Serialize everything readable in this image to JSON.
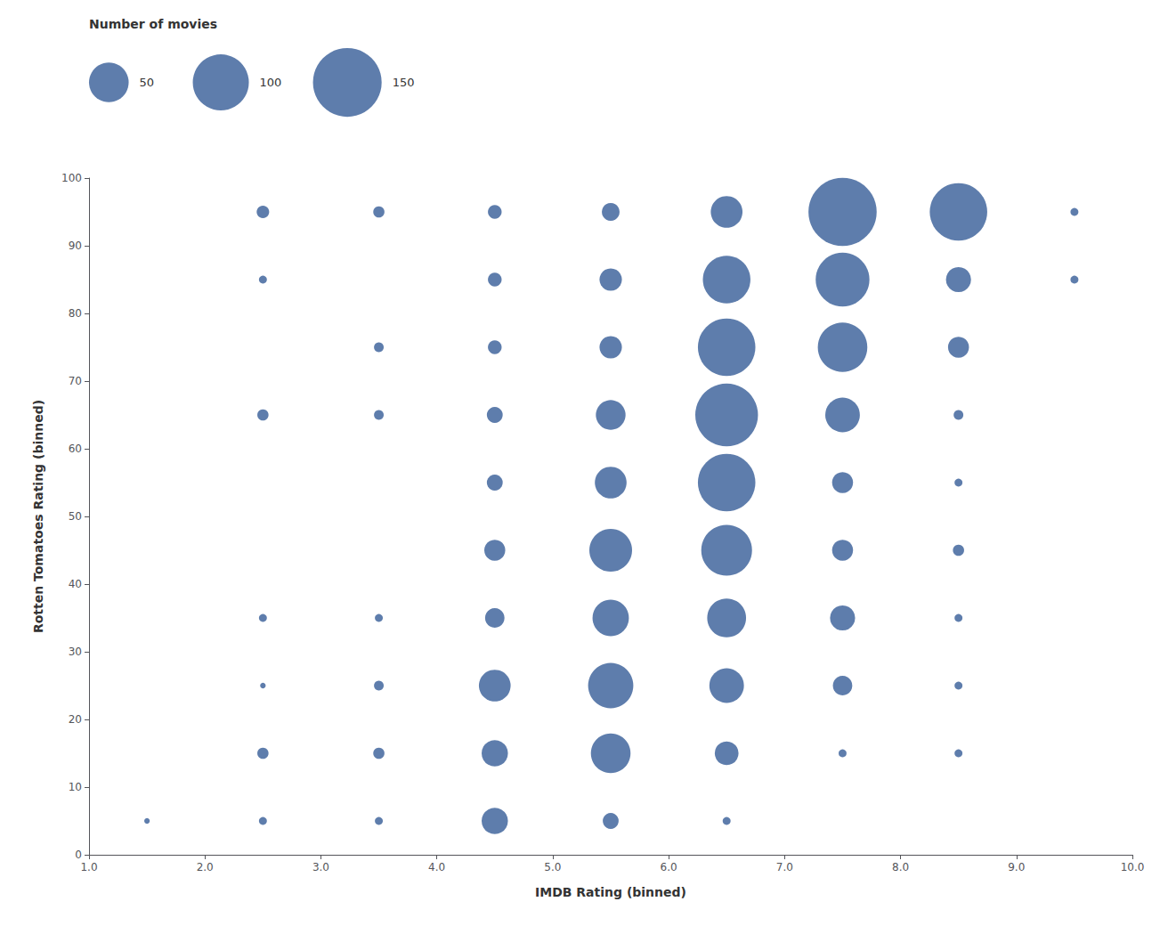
{
  "chart_data": {
    "type": "scatter",
    "xlabel": "IMDB Rating (binned)",
    "ylabel": "Rotten Tomatoes Rating (binned)",
    "color": "#4d6fa3",
    "x": [
      1.5,
      2.5,
      2.5,
      2.5,
      2.5,
      2.5,
      2.5,
      2.5,
      3.5,
      3.5,
      3.5,
      3.5,
      3.5,
      3.5,
      3.5,
      4.5,
      4.5,
      4.5,
      4.5,
      4.5,
      4.5,
      4.5,
      4.5,
      4.5,
      4.5,
      5.5,
      5.5,
      5.5,
      5.5,
      5.5,
      5.5,
      5.5,
      5.5,
      5.5,
      5.5,
      6.5,
      6.5,
      6.5,
      6.5,
      6.5,
      6.5,
      6.5,
      6.5,
      6.5,
      6.5,
      7.5,
      7.5,
      7.5,
      7.5,
      7.5,
      7.5,
      7.5,
      7.5,
      7.5,
      8.5,
      8.5,
      8.5,
      8.5,
      8.5,
      8.5,
      8.5,
      8.5,
      8.5,
      9.5,
      9.5
    ],
    "y": [
      5,
      5,
      15,
      25,
      35,
      65,
      85,
      95,
      5,
      15,
      25,
      35,
      65,
      75,
      95,
      5,
      15,
      25,
      35,
      45,
      55,
      65,
      75,
      85,
      95,
      5,
      15,
      25,
      35,
      45,
      55,
      65,
      75,
      85,
      95,
      5,
      15,
      25,
      35,
      45,
      55,
      65,
      75,
      85,
      95,
      15,
      25,
      35,
      45,
      55,
      65,
      75,
      85,
      95,
      15,
      25,
      35,
      45,
      55,
      65,
      75,
      85,
      95,
      85,
      95
    ],
    "sizes": [
      1,
      2,
      4,
      1,
      2,
      4,
      2,
      5,
      2,
      4,
      3,
      2,
      3,
      3,
      4,
      22,
      22,
      32,
      12,
      14,
      8,
      8,
      6,
      6,
      6,
      8,
      50,
      65,
      42,
      58,
      32,
      28,
      16,
      16,
      10,
      2,
      18,
      38,
      48,
      82,
      105,
      125,
      105,
      72,
      32,
      2,
      12,
      20,
      14,
      14,
      38,
      78,
      92,
      148,
      2,
      2,
      2,
      4,
      2,
      3,
      14,
      20,
      105,
      2,
      2
    ],
    "xlim": [
      1.0,
      10.0
    ],
    "ylim": [
      0,
      100
    ],
    "xticks": [
      {
        "value": 1.0,
        "label": "1.0"
      },
      {
        "value": 2.0,
        "label": "2.0"
      },
      {
        "value": 3.0,
        "label": "3.0"
      },
      {
        "value": 4.0,
        "label": "4.0"
      },
      {
        "value": 5.0,
        "label": "5.0"
      },
      {
        "value": 6.0,
        "label": "6.0"
      },
      {
        "value": 7.0,
        "label": "7.0"
      },
      {
        "value": 8.0,
        "label": "8.0"
      },
      {
        "value": 9.0,
        "label": "9.0"
      },
      {
        "value": 10.0,
        "label": "10.0"
      }
    ],
    "yticks": [
      0,
      10,
      20,
      30,
      40,
      50,
      60,
      70,
      80,
      90,
      100
    ],
    "grid": false,
    "legend": "upper left",
    "legend_title": "Number of movies",
    "legend_sizes": [
      50,
      100,
      150
    ]
  }
}
